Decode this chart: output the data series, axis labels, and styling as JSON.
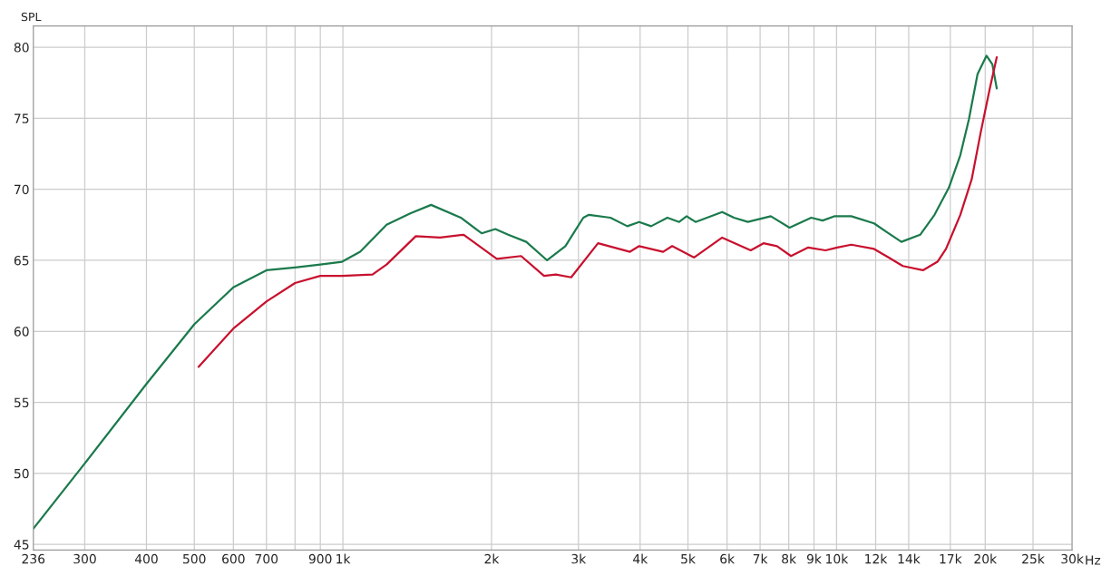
{
  "chart_data": {
    "type": "line",
    "ylabel": "SPL",
    "log": "x",
    "grid": true,
    "line_style": "solid",
    "marker": "none",
    "xlim": [
      236,
      30000
    ],
    "ylim": [
      44.6,
      81.5
    ],
    "xticks": [
      236,
      300,
      400,
      500,
      600,
      700,
      {
        "value": 800,
        "label": null
      },
      900,
      {
        "value": 1000,
        "label": "1k"
      },
      {
        "value": 2000,
        "label": "2k"
      },
      {
        "value": 3000,
        "label": "3k"
      },
      {
        "value": 4000,
        "label": "4k"
      },
      {
        "value": 5000,
        "label": "5k"
      },
      {
        "value": 6000,
        "label": "6k"
      },
      {
        "value": 7000,
        "label": "7k"
      },
      {
        "value": 8000,
        "label": "8k"
      },
      {
        "value": 9000,
        "label": "9k"
      },
      {
        "value": 10000,
        "label": "10k"
      },
      {
        "value": 12000,
        "label": "12k"
      },
      {
        "value": 14000,
        "label": "14k"
      },
      {
        "value": 17000,
        "label": "17k"
      },
      {
        "value": 20000,
        "label": "20k"
      },
      {
        "value": 25000,
        "label": "25k"
      },
      {
        "value": 30000,
        "label": "30k"
      }
    ],
    "xlabel": "Hz",
    "yticks": [
      45,
      50,
      55,
      60,
      65,
      70,
      75,
      80
    ],
    "series": [
      {
        "color": "#1b7a4c",
        "x": [
          236,
          300,
          400,
          500,
          600,
          700,
          800,
          900,
          996,
          1084,
          1226,
          1369,
          1509,
          1733,
          1910,
          2036,
          2162,
          2352,
          2592,
          2823,
          3069,
          3150,
          3483,
          3768,
          3982,
          4210,
          4543,
          4798,
          4969,
          5180,
          5865,
          6197,
          6611,
          7359,
          8030,
          8885,
          9372,
          9890,
          10710,
          11910,
          12740,
          13530,
          14770,
          15790,
          16880,
          17810,
          18530,
          19300,
          20120,
          20680,
          21110
        ],
        "values": [
          46.1,
          50.7,
          56.3,
          60.5,
          63.1,
          64.3,
          64.5,
          64.7,
          64.9,
          65.6,
          67.5,
          68.3,
          68.9,
          68.0,
          66.9,
          67.2,
          66.8,
          66.3,
          65.0,
          66.0,
          68.0,
          68.2,
          68.0,
          67.4,
          67.7,
          67.4,
          68.0,
          67.7,
          68.1,
          67.7,
          68.4,
          68.0,
          67.7,
          68.1,
          67.3,
          68.0,
          67.8,
          68.1,
          68.1,
          67.6,
          66.9,
          66.3,
          66.8,
          68.2,
          70.1,
          72.4,
          74.9,
          78.1,
          79.4,
          78.8,
          77.1
        ]
      },
      {
        "color": "#c8102e",
        "x": [
          510,
          600,
          700,
          800,
          900,
          996,
          1148,
          1226,
          1405,
          1573,
          1757,
          2050,
          2296,
          2555,
          2700,
          2900,
          3287,
          3815,
          3982,
          4453,
          4645,
          5144,
          5865,
          6700,
          7110,
          7573,
          8085,
          8762,
          9497,
          10030,
          10710,
          11910,
          12740,
          13620,
          14960,
          16010,
          16660,
          17810,
          18780,
          19560,
          20410,
          21110
        ],
        "values": [
          57.5,
          60.2,
          62.1,
          63.4,
          63.9,
          63.9,
          64.0,
          64.7,
          66.7,
          66.6,
          66.8,
          65.1,
          65.3,
          63.9,
          64.0,
          63.8,
          66.2,
          65.6,
          66.0,
          65.6,
          66.0,
          65.2,
          66.6,
          65.7,
          66.2,
          66.0,
          65.3,
          65.9,
          65.7,
          65.9,
          66.1,
          65.8,
          65.2,
          64.6,
          64.3,
          64.9,
          65.8,
          68.2,
          70.7,
          73.9,
          77.0,
          79.3
        ]
      }
    ]
  }
}
